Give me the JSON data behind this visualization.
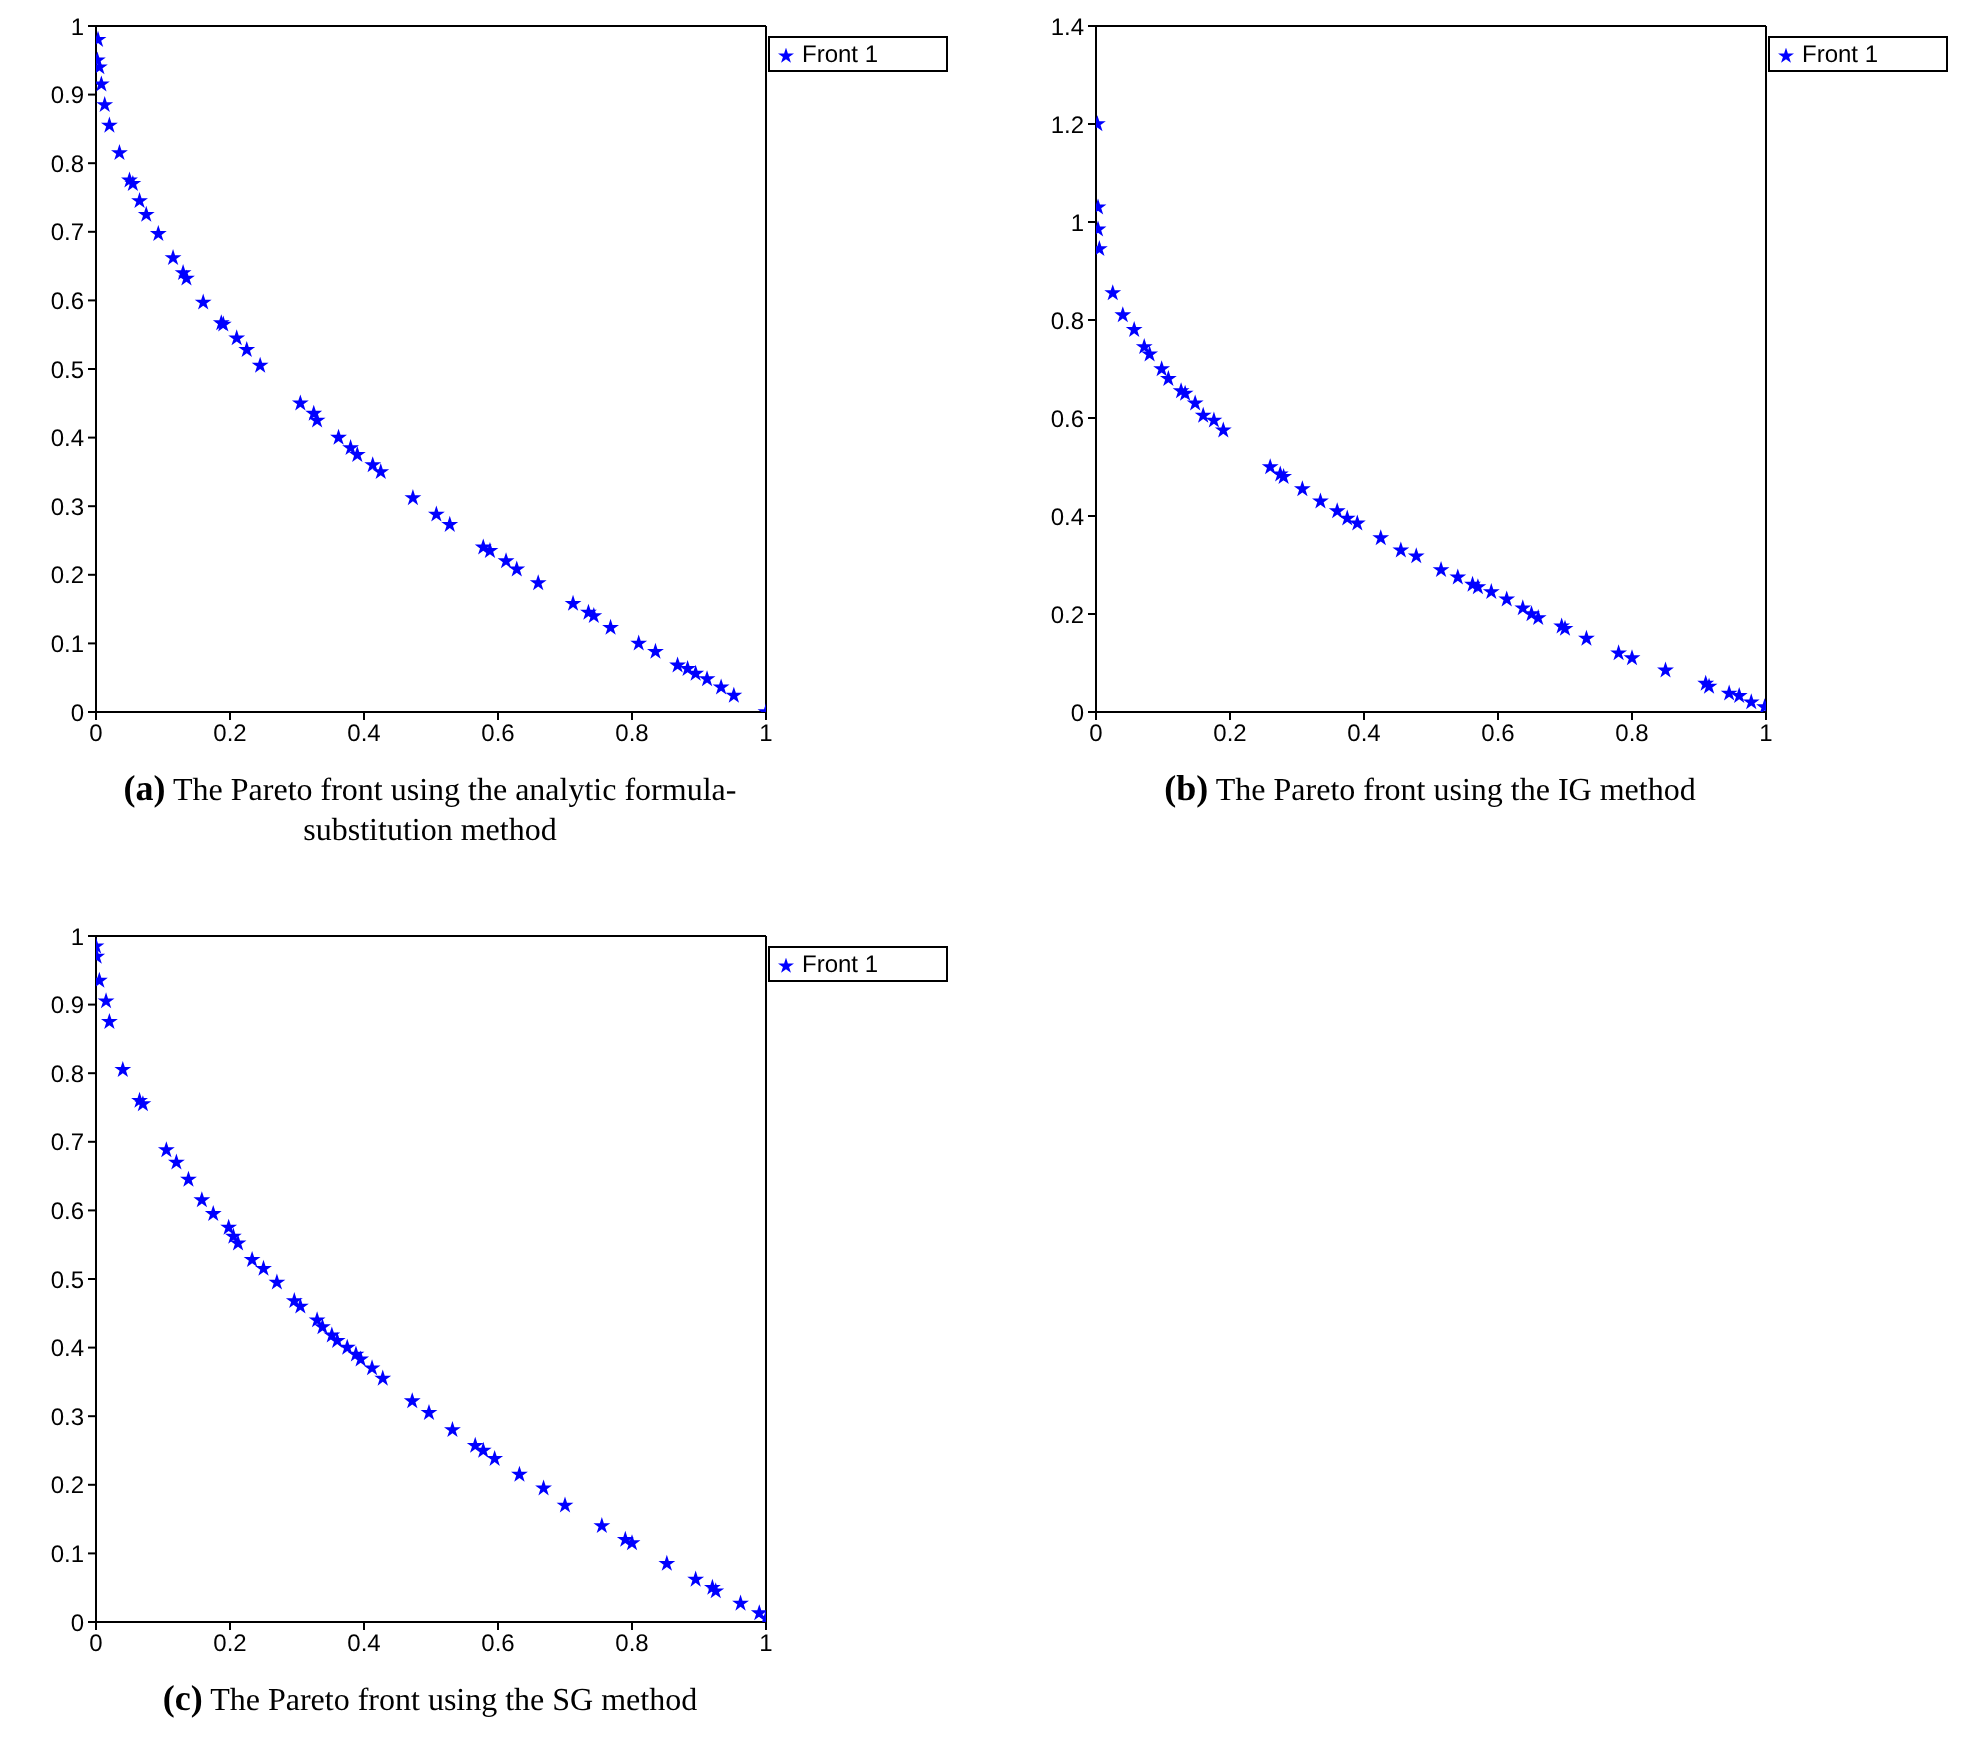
{
  "chart_data": [
    {
      "type": "scatter",
      "title": "(a) The Pareto front using the analytic formula-substitution method",
      "marker": "star",
      "legend": "top right",
      "xlim": [
        0,
        1
      ],
      "xticks": [
        0,
        0.2,
        0.4,
        0.6,
        0.8,
        1
      ],
      "ylim": [
        0,
        1
      ],
      "yticks": [
        0,
        0.1,
        0.2,
        0.3,
        0.4,
        0.5,
        0.6,
        0.7,
        0.8,
        0.9,
        1
      ],
      "series": [
        {
          "name": "Front 1",
          "color": "#0000ff",
          "x": [
            0.003,
            0.002,
            0.005,
            0.008,
            0.013,
            0.02,
            0.035,
            0.05,
            0.055,
            0.065,
            0.075,
            0.093,
            0.115,
            0.13,
            0.135,
            0.16,
            0.187,
            0.19,
            0.21,
            0.225,
            0.245,
            0.305,
            0.325,
            0.33,
            0.362,
            0.38,
            0.39,
            0.413,
            0.425,
            0.473,
            0.508,
            0.528,
            0.578,
            0.588,
            0.612,
            0.628,
            0.66,
            0.712,
            0.735,
            0.743,
            0.768,
            0.81,
            0.835,
            0.868,
            0.883,
            0.895,
            0.912,
            0.933,
            0.952,
            1.0
          ],
          "values": [
            0.98,
            0.95,
            0.94,
            0.915,
            0.885,
            0.855,
            0.815,
            0.775,
            0.77,
            0.745,
            0.725,
            0.697,
            0.662,
            0.64,
            0.632,
            0.597,
            0.567,
            0.565,
            0.545,
            0.528,
            0.505,
            0.45,
            0.435,
            0.425,
            0.4,
            0.385,
            0.375,
            0.36,
            0.35,
            0.312,
            0.288,
            0.273,
            0.24,
            0.235,
            0.22,
            0.208,
            0.188,
            0.158,
            0.145,
            0.14,
            0.123,
            0.1,
            0.088,
            0.068,
            0.063,
            0.056,
            0.048,
            0.036,
            0.024,
            0.0
          ]
        }
      ]
    },
    {
      "type": "scatter",
      "title": "(b) The Pareto front using the IG method",
      "marker": "star",
      "legend": "top right",
      "xlim": [
        0,
        1
      ],
      "xticks": [
        0,
        0.2,
        0.4,
        0.6,
        0.8,
        1
      ],
      "ylim": [
        0,
        1.4
      ],
      "yticks": [
        0,
        0.2,
        0.4,
        0.6,
        0.8,
        1,
        1.2,
        1.4
      ],
      "series": [
        {
          "name": "Front 1",
          "color": "#0000ff",
          "x": [
            0.002,
            0.003,
            0.003,
            0.005,
            0.025,
            0.04,
            0.057,
            0.072,
            0.08,
            0.098,
            0.108,
            0.127,
            0.133,
            0.148,
            0.16,
            0.176,
            0.19,
            0.26,
            0.275,
            0.28,
            0.308,
            0.335,
            0.36,
            0.375,
            0.39,
            0.425,
            0.455,
            0.478,
            0.515,
            0.54,
            0.562,
            0.57,
            0.59,
            0.613,
            0.637,
            0.65,
            0.66,
            0.695,
            0.7,
            0.732,
            0.78,
            0.8,
            0.85,
            0.91,
            0.915,
            0.945,
            0.96,
            0.978,
            0.998
          ],
          "values": [
            1.2,
            1.03,
            0.985,
            0.945,
            0.855,
            0.81,
            0.78,
            0.745,
            0.73,
            0.7,
            0.68,
            0.655,
            0.65,
            0.63,
            0.605,
            0.595,
            0.575,
            0.5,
            0.485,
            0.48,
            0.455,
            0.43,
            0.41,
            0.395,
            0.385,
            0.355,
            0.33,
            0.318,
            0.29,
            0.275,
            0.26,
            0.255,
            0.245,
            0.23,
            0.212,
            0.2,
            0.192,
            0.175,
            0.17,
            0.15,
            0.12,
            0.11,
            0.085,
            0.058,
            0.052,
            0.038,
            0.033,
            0.02,
            0.01
          ]
        }
      ]
    },
    {
      "type": "scatter",
      "title": "(c) The Pareto front using the SG method",
      "marker": "star",
      "legend": "top right",
      "xlim": [
        0,
        1
      ],
      "xticks": [
        0,
        0.2,
        0.4,
        0.6,
        0.8,
        1
      ],
      "ylim": [
        0,
        1
      ],
      "yticks": [
        0,
        0.1,
        0.2,
        0.3,
        0.4,
        0.5,
        0.6,
        0.7,
        0.8,
        0.9,
        1
      ],
      "series": [
        {
          "name": "Front 1",
          "color": "#0000ff",
          "x": [
            0.0,
            0.001,
            0.005,
            0.015,
            0.02,
            0.04,
            0.065,
            0.07,
            0.105,
            0.12,
            0.138,
            0.158,
            0.175,
            0.198,
            0.205,
            0.212,
            0.233,
            0.25,
            0.27,
            0.296,
            0.305,
            0.33,
            0.338,
            0.352,
            0.36,
            0.375,
            0.388,
            0.395,
            0.412,
            0.428,
            0.472,
            0.497,
            0.532,
            0.566,
            0.578,
            0.595,
            0.632,
            0.668,
            0.7,
            0.755,
            0.79,
            0.8,
            0.852,
            0.895,
            0.92,
            0.925,
            0.962,
            0.99,
            1.0
          ],
          "values": [
            0.985,
            0.97,
            0.935,
            0.905,
            0.875,
            0.805,
            0.76,
            0.755,
            0.688,
            0.67,
            0.645,
            0.615,
            0.595,
            0.575,
            0.562,
            0.552,
            0.528,
            0.515,
            0.495,
            0.468,
            0.46,
            0.44,
            0.43,
            0.418,
            0.41,
            0.4,
            0.39,
            0.383,
            0.37,
            0.355,
            0.322,
            0.305,
            0.28,
            0.257,
            0.25,
            0.238,
            0.215,
            0.195,
            0.17,
            0.14,
            0.12,
            0.115,
            0.085,
            0.062,
            0.05,
            0.045,
            0.027,
            0.013,
            0.005
          ]
        }
      ]
    }
  ]
}
